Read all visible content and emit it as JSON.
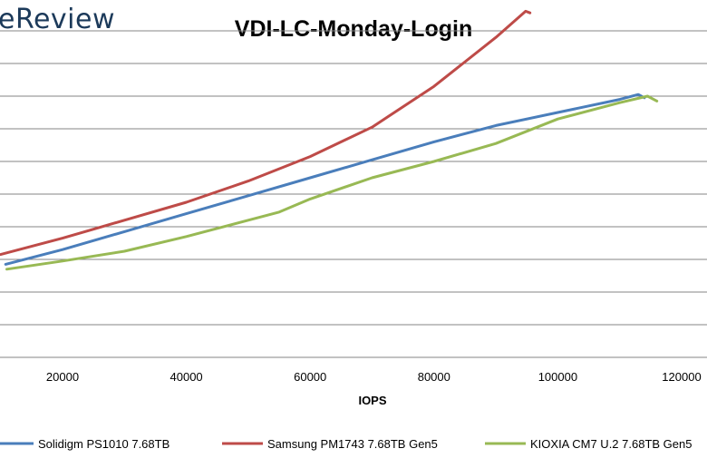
{
  "brand": {
    "logo_text": "eReview"
  },
  "chart_data": {
    "type": "line",
    "title": "VDI-LC-Monday-Login",
    "xlabel": "IOPS",
    "ylabel": "",
    "xlim": [
      10000,
      120000
    ],
    "ylim": [
      0,
      11
    ],
    "x_ticks": [
      20000,
      40000,
      60000,
      80000,
      100000,
      120000
    ],
    "x_tick_labels": [
      "20000",
      "40000",
      "60000",
      "80000",
      "100000",
      "120000"
    ],
    "y_ticks": [
      1,
      2,
      3,
      4,
      5,
      6,
      7,
      8,
      9,
      10
    ],
    "grid": true,
    "legend_position": "bottom",
    "series": [
      {
        "name": "Solidigm PS1010 7.68TB",
        "color": "#4a7ebb",
        "points": [
          [
            10800,
            2.85
          ],
          [
            20000,
            3.3
          ],
          [
            30000,
            3.85
          ],
          [
            40000,
            4.4
          ],
          [
            50000,
            4.95
          ],
          [
            60000,
            5.5
          ],
          [
            70000,
            6.05
          ],
          [
            80000,
            6.6
          ],
          [
            90000,
            7.1
          ],
          [
            100000,
            7.5
          ],
          [
            110000,
            7.9
          ],
          [
            113000,
            8.05
          ],
          [
            114000,
            7.95
          ]
        ]
      },
      {
        "name": "Samsung PM1743 7.68TB Gen5",
        "color": "#be4b48",
        "points": [
          [
            10000,
            3.15
          ],
          [
            20000,
            3.65
          ],
          [
            30000,
            4.2
          ],
          [
            40000,
            4.75
          ],
          [
            50000,
            5.4
          ],
          [
            60000,
            6.15
          ],
          [
            70000,
            7.05
          ],
          [
            80000,
            8.3
          ],
          [
            90000,
            9.8
          ],
          [
            94800,
            10.6
          ],
          [
            95500,
            10.55
          ]
        ]
      },
      {
        "name": "KIOXIA CM7 U.2 7.68TB Gen5",
        "color": "#98b954",
        "points": [
          [
            11000,
            2.7
          ],
          [
            20000,
            2.95
          ],
          [
            30000,
            3.25
          ],
          [
            40000,
            3.7
          ],
          [
            50000,
            4.2
          ],
          [
            55000,
            4.45
          ],
          [
            60000,
            4.85
          ],
          [
            70000,
            5.5
          ],
          [
            80000,
            6.0
          ],
          [
            90000,
            6.55
          ],
          [
            100000,
            7.3
          ],
          [
            110000,
            7.8
          ],
          [
            114500,
            8.0
          ],
          [
            116000,
            7.85
          ]
        ]
      }
    ]
  }
}
